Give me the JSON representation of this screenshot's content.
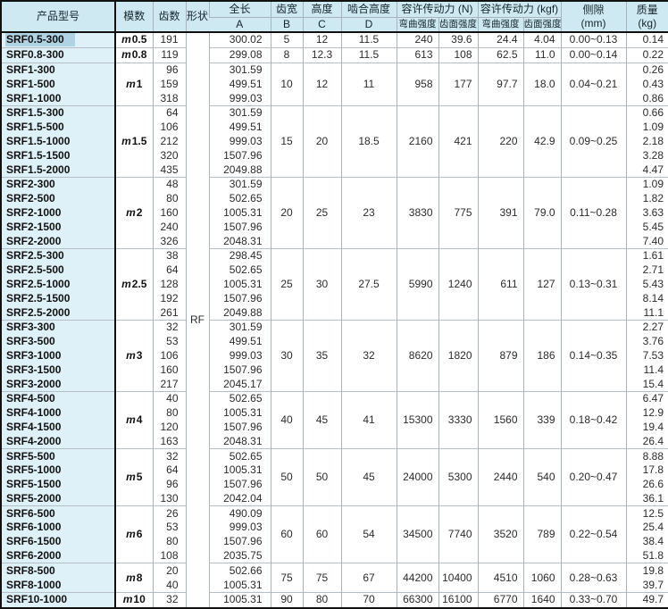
{
  "colors": {
    "header_bg": "#cfe9f2",
    "product_column_bg": "#def1f8",
    "selection_highlight": "#b0d3e4",
    "grid_line": "#a7b3ba",
    "outer_border": "#111111"
  },
  "header": {
    "product": "产品型号",
    "module": "模数",
    "teeth": "齿数",
    "shape": "形状",
    "length": "全长",
    "length_sub": "A",
    "face_width": "齿宽",
    "face_width_sub": "B",
    "height": "高度",
    "height_sub": "C",
    "mesh_height": "啮合高度",
    "mesh_height_sub": "D",
    "force_n": "容许传动力 (N)",
    "force_kgf": "容许传动力 (kgf)",
    "bending": "弯曲强度",
    "surface": "齿面强度",
    "backlash": "侧隙",
    "backlash_sub": "(mm)",
    "mass": "质量",
    "mass_sub": "(kg)"
  },
  "shape_value": "RF",
  "groups": [
    {
      "module": "m0.5",
      "b": "5",
      "c": "12",
      "d": "11.5",
      "bend_n": "240",
      "surf_n": "39.6",
      "bend_kgf": "24.4",
      "surf_kgf": "4.04",
      "backlash": "0.00~0.13",
      "rows": [
        {
          "model": "SRF0.5-300",
          "teeth": "191",
          "length": "300.02",
          "mass": "0.14",
          "selected": true
        }
      ]
    },
    {
      "module": "m0.8",
      "b": "8",
      "c": "12.3",
      "d": "11.5",
      "bend_n": "613",
      "surf_n": "108",
      "bend_kgf": "62.5",
      "surf_kgf": "11.0",
      "backlash": "0.00~0.14",
      "rows": [
        {
          "model": "SRF0.8-300",
          "teeth": "119",
          "length": "299.08",
          "mass": "0.22"
        }
      ]
    },
    {
      "module": "m1",
      "b": "10",
      "c": "12",
      "d": "11",
      "bend_n": "958",
      "surf_n": "177",
      "bend_kgf": "97.7",
      "surf_kgf": "18.0",
      "backlash": "0.04~0.21",
      "rows": [
        {
          "model": "SRF1-300",
          "teeth": "96",
          "length": "301.59",
          "mass": "0.26"
        },
        {
          "model": "SRF1-500",
          "teeth": "159",
          "length": "499.51",
          "mass": "0.43"
        },
        {
          "model": "SRF1-1000",
          "teeth": "318",
          "length": "999.03",
          "mass": "0.86"
        }
      ]
    },
    {
      "module": "m1.5",
      "b": "15",
      "c": "20",
      "d": "18.5",
      "bend_n": "2160",
      "surf_n": "421",
      "bend_kgf": "220",
      "surf_kgf": "42.9",
      "backlash": "0.09~0.25",
      "rows": [
        {
          "model": "SRF1.5-300",
          "teeth": "64",
          "length": "301.59",
          "mass": "0.66"
        },
        {
          "model": "SRF1.5-500",
          "teeth": "106",
          "length": "499.51",
          "mass": "1.09"
        },
        {
          "model": "SRF1.5-1000",
          "teeth": "212",
          "length": "999.03",
          "mass": "2.18"
        },
        {
          "model": "SRF1.5-1500",
          "teeth": "320",
          "length": "1507.96",
          "mass": "3.28"
        },
        {
          "model": "SRF1.5-2000",
          "teeth": "435",
          "length": "2049.88",
          "mass": "4.47"
        }
      ]
    },
    {
      "module": "m2",
      "b": "20",
      "c": "25",
      "d": "23",
      "bend_n": "3830",
      "surf_n": "775",
      "bend_kgf": "391",
      "surf_kgf": "79.0",
      "backlash": "0.11~0.28",
      "rows": [
        {
          "model": "SRF2-300",
          "teeth": "48",
          "length": "301.59",
          "mass": "1.09"
        },
        {
          "model": "SRF2-500",
          "teeth": "80",
          "length": "502.65",
          "mass": "1.82"
        },
        {
          "model": "SRF2-1000",
          "teeth": "160",
          "length": "1005.31",
          "mass": "3.63"
        },
        {
          "model": "SRF2-1500",
          "teeth": "240",
          "length": "1507.96",
          "mass": "5.45"
        },
        {
          "model": "SRF2-2000",
          "teeth": "326",
          "length": "2048.31",
          "mass": "7.40"
        }
      ]
    },
    {
      "module": "m2.5",
      "b": "25",
      "c": "30",
      "d": "27.5",
      "bend_n": "5990",
      "surf_n": "1240",
      "bend_kgf": "611",
      "surf_kgf": "127",
      "backlash": "0.13~0.31",
      "rows": [
        {
          "model": "SRF2.5-300",
          "teeth": "38",
          "length": "298.45",
          "mass": "1.61"
        },
        {
          "model": "SRF2.5-500",
          "teeth": "64",
          "length": "502.65",
          "mass": "2.71"
        },
        {
          "model": "SRF2.5-1000",
          "teeth": "128",
          "length": "1005.31",
          "mass": "5.43"
        },
        {
          "model": "SRF2.5-1500",
          "teeth": "192",
          "length": "1507.96",
          "mass": "8.14"
        },
        {
          "model": "SRF2.5-2000",
          "teeth": "261",
          "length": "2049.88",
          "mass": "11.1"
        }
      ]
    },
    {
      "module": "m3",
      "b": "30",
      "c": "35",
      "d": "32",
      "bend_n": "8620",
      "surf_n": "1820",
      "bend_kgf": "879",
      "surf_kgf": "186",
      "backlash": "0.14~0.35",
      "rows": [
        {
          "model": "SRF3-300",
          "teeth": "32",
          "length": "301.59",
          "mass": "2.27"
        },
        {
          "model": "SRF3-500",
          "teeth": "53",
          "length": "499.51",
          "mass": "3.76"
        },
        {
          "model": "SRF3-1000",
          "teeth": "106",
          "length": "999.03",
          "mass": "7.53"
        },
        {
          "model": "SRF3-1500",
          "teeth": "160",
          "length": "1507.96",
          "mass": "11.4"
        },
        {
          "model": "SRF3-2000",
          "teeth": "217",
          "length": "2045.17",
          "mass": "15.4"
        }
      ]
    },
    {
      "module": "m4",
      "b": "40",
      "c": "45",
      "d": "41",
      "bend_n": "15300",
      "surf_n": "3330",
      "bend_kgf": "1560",
      "surf_kgf": "339",
      "backlash": "0.18~0.42",
      "rows": [
        {
          "model": "SRF4-500",
          "teeth": "40",
          "length": "502.65",
          "mass": "6.47"
        },
        {
          "model": "SRF4-1000",
          "teeth": "80",
          "length": "1005.31",
          "mass": "12.9"
        },
        {
          "model": "SRF4-1500",
          "teeth": "120",
          "length": "1507.96",
          "mass": "19.4"
        },
        {
          "model": "SRF4-2000",
          "teeth": "163",
          "length": "2048.31",
          "mass": "26.4"
        }
      ]
    },
    {
      "module": "m5",
      "b": "50",
      "c": "50",
      "d": "45",
      "bend_n": "24000",
      "surf_n": "5300",
      "bend_kgf": "2440",
      "surf_kgf": "540",
      "backlash": "0.20~0.47",
      "rows": [
        {
          "model": "SRF5-500",
          "teeth": "32",
          "length": "502.65",
          "mass": "8.88"
        },
        {
          "model": "SRF5-1000",
          "teeth": "64",
          "length": "1005.31",
          "mass": "17.8"
        },
        {
          "model": "SRF5-1500",
          "teeth": "96",
          "length": "1507.96",
          "mass": "26.6"
        },
        {
          "model": "SRF5-2000",
          "teeth": "130",
          "length": "2042.04",
          "mass": "36.1"
        }
      ]
    },
    {
      "module": "m6",
      "b": "60",
      "c": "60",
      "d": "54",
      "bend_n": "34500",
      "surf_n": "7740",
      "bend_kgf": "3520",
      "surf_kgf": "789",
      "backlash": "0.22~0.54",
      "rows": [
        {
          "model": "SRF6-500",
          "teeth": "26",
          "length": "490.09",
          "mass": "12.5"
        },
        {
          "model": "SRF6-1000",
          "teeth": "53",
          "length": "999.03",
          "mass": "25.4"
        },
        {
          "model": "SRF6-1500",
          "teeth": "80",
          "length": "1507.96",
          "mass": "38.4"
        },
        {
          "model": "SRF6-2000",
          "teeth": "108",
          "length": "2035.75",
          "mass": "51.8"
        }
      ]
    },
    {
      "module": "m8",
      "b": "75",
      "c": "75",
      "d": "67",
      "bend_n": "44200",
      "surf_n": "10400",
      "bend_kgf": "4510",
      "surf_kgf": "1060",
      "backlash": "0.28~0.63",
      "rows": [
        {
          "model": "SRF8-500",
          "teeth": "20",
          "length": "502.66",
          "mass": "19.8"
        },
        {
          "model": "SRF8-1000",
          "teeth": "40",
          "length": "1005.31",
          "mass": "39.7"
        }
      ]
    },
    {
      "module": "m10",
      "b": "90",
      "c": "80",
      "d": "70",
      "bend_n": "66300",
      "surf_n": "16100",
      "bend_kgf": "6770",
      "surf_kgf": "1640",
      "backlash": "0.33~0.70",
      "rows": [
        {
          "model": "SRF10-1000",
          "teeth": "32",
          "length": "1005.31",
          "mass": "49.7"
        }
      ]
    }
  ]
}
